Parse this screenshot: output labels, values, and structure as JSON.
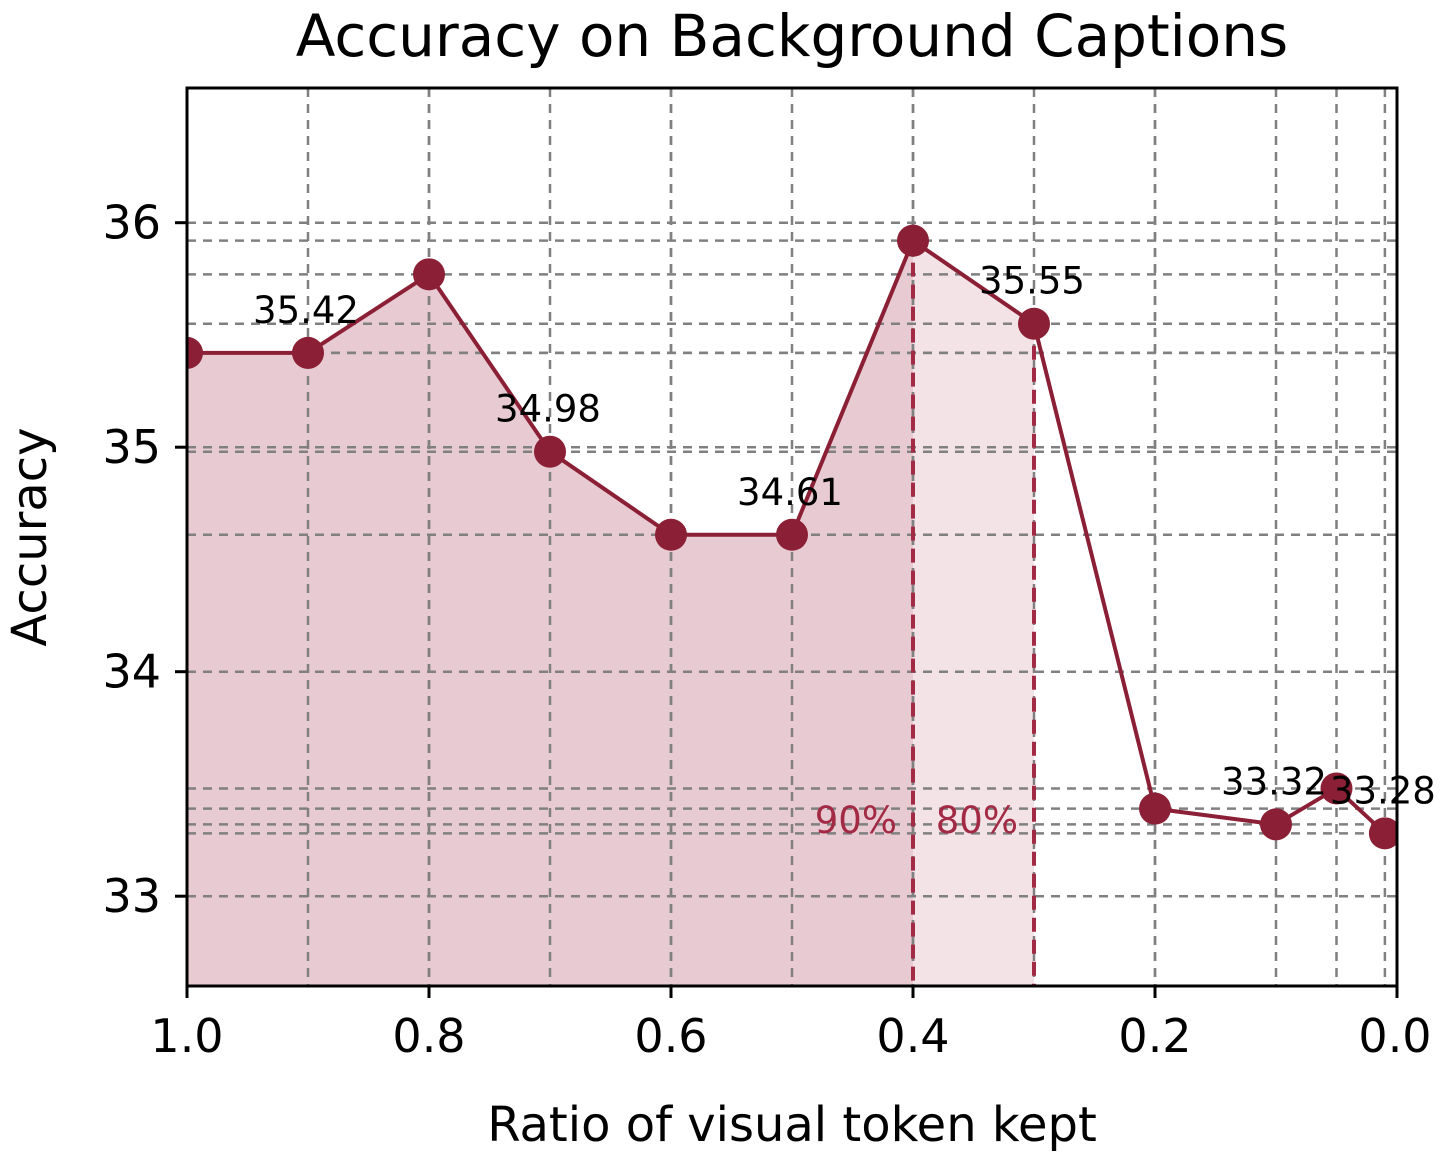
{
  "chart_data": {
    "type": "line",
    "title": "Accuracy on Background Captions",
    "xlabel": "Ratio of visual token kept",
    "ylabel": "Accuracy",
    "xlim": [
      1.0,
      0.0
    ],
    "ylim": [
      32.6,
      36.6
    ],
    "x_reversed": true,
    "xticks": [
      1.0,
      0.8,
      0.6,
      0.4,
      0.2,
      0.0
    ],
    "xtick_labels": [
      "1.0",
      "0.8",
      "0.6",
      "0.4",
      "0.2",
      "0.0"
    ],
    "yticks": [
      33,
      34,
      35,
      36
    ],
    "ytick_labels": [
      "33",
      "34",
      "35",
      "36"
    ],
    "grid": true,
    "series": [
      {
        "x": [
          1.0,
          0.9,
          0.8,
          0.7,
          0.6,
          0.5,
          0.4,
          0.3,
          0.2,
          0.1,
          0.05,
          0.01
        ],
        "values": [
          35.42,
          35.42,
          35.77,
          34.98,
          34.61,
          34.61,
          35.92,
          35.55,
          33.39,
          33.32,
          33.48,
          33.28
        ],
        "color": "#8b1f35"
      }
    ],
    "data_labels": [
      {
        "x": 0.9,
        "y": 35.42,
        "text": "35.42"
      },
      {
        "x": 0.7,
        "y": 34.98,
        "text": "34.98"
      },
      {
        "x": 0.5,
        "y": 34.61,
        "text": "34.61"
      },
      {
        "x": 0.3,
        "y": 35.55,
        "text": "35.55"
      },
      {
        "x": 0.1,
        "y": 33.32,
        "text": "33.32"
      },
      {
        "x": 0.01,
        "y": 33.28,
        "text": "33.28"
      }
    ],
    "thresholds": [
      {
        "x": 0.4,
        "label": "90%",
        "fill_color": "#e8cbd2"
      },
      {
        "x": 0.3,
        "label": "80%",
        "fill_color": "#f3e2e6"
      }
    ],
    "threshold_color": "#a32a44",
    "grid_color": "#808080"
  }
}
